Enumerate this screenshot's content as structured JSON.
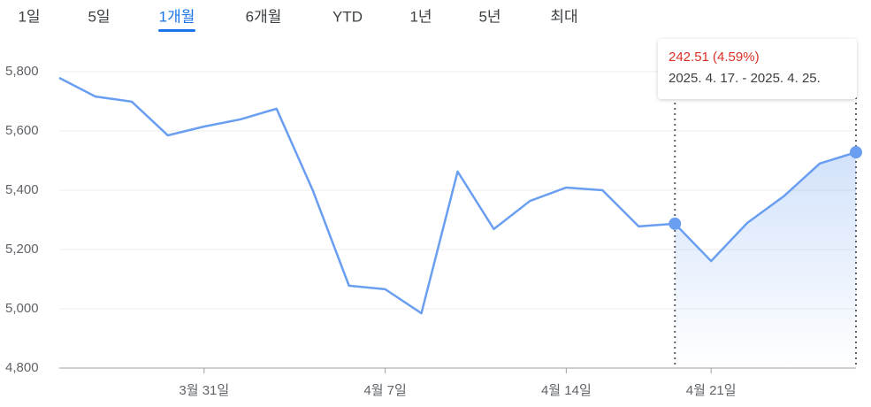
{
  "tabs": [
    "1일",
    "5일",
    "1개월",
    "6개월",
    "YTD",
    "1년",
    "5년",
    "최대"
  ],
  "selected_tab": 2,
  "chart_data": {
    "type": "line",
    "categories": [
      null,
      null,
      null,
      null,
      "3월 31일",
      null,
      null,
      null,
      null,
      "4월 7일",
      null,
      null,
      null,
      null,
      "4월 14일",
      null,
      null,
      null,
      "4월 21일",
      null,
      null,
      null,
      null
    ],
    "series": [
      {
        "color": "#6a9ef0",
        "values": [
          5779,
          5716,
          5699,
          5585,
          5615,
          5639,
          5675,
          5400,
          5078,
          5066,
          4985,
          5463,
          5269,
          5364,
          5409,
          5400,
          5278,
          5287,
          5161,
          5290,
          5379,
          5490,
          5528
        ]
      }
    ],
    "ylim": [
      4800,
      5860
    ],
    "yticks": [
      {
        "value": 4800,
        "label": "4,800"
      },
      {
        "value": 5000,
        "label": "5,000"
      },
      {
        "value": 5200,
        "label": "5,200"
      },
      {
        "value": 5400,
        "label": "5,400"
      },
      {
        "value": 5600,
        "label": "5,600"
      },
      {
        "value": 5800,
        "label": "5,800"
      }
    ],
    "grid": true,
    "highlight_range": [
      17,
      22
    ],
    "tooltip": {
      "change": "242.51 (4.59%)",
      "range": "2025. 4. 17. - 2025. 4. 25.",
      "change_color": "#d93025"
    }
  }
}
